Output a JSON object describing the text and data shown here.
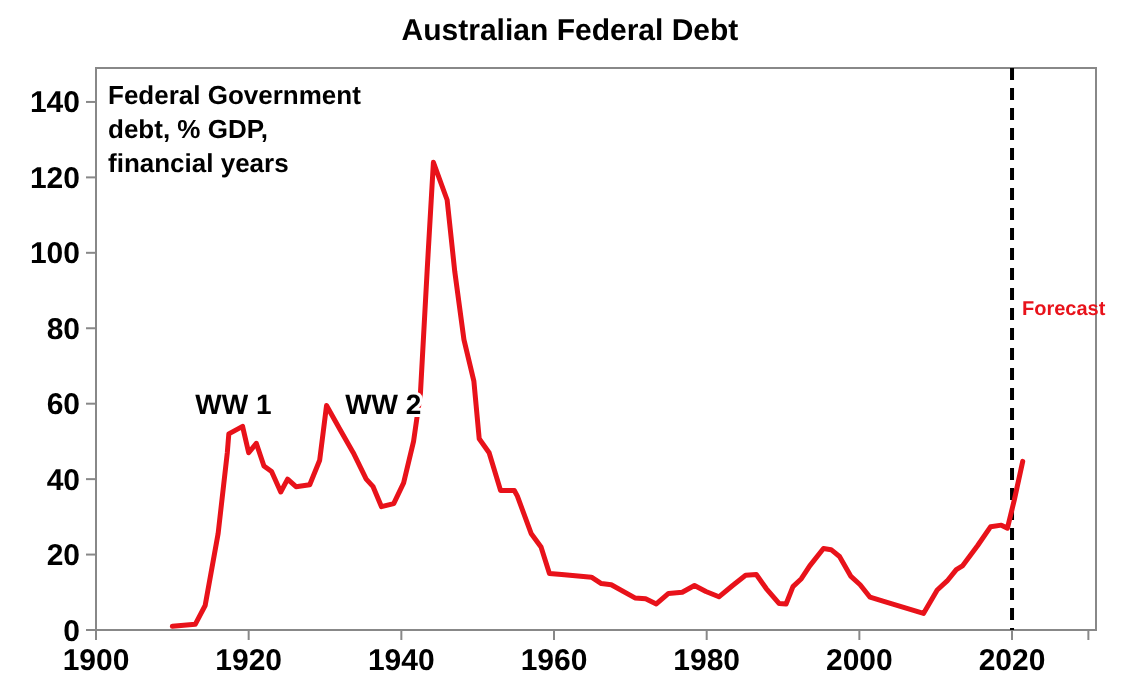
{
  "chart_data": {
    "type": "line",
    "title": "Australian Federal Debt",
    "ylabel": "Federal Government debt, % GDP, financial years",
    "xlim": [
      1900,
      2031
    ],
    "xticks": [
      1900,
      1920,
      1940,
      1960,
      1980,
      2000,
      2020,
      {
        "value": 2030,
        "label": null
      }
    ],
    "ylim": [
      0,
      149
    ],
    "yticks": [
      0,
      20,
      40,
      60,
      80,
      100,
      120,
      140
    ],
    "line_style": "solid",
    "marker": "none",
    "series": [
      {
        "color": "#e8121a",
        "x": [
          1910,
          1913,
          1914.3,
          1916,
          1917.2,
          1917.4,
          1919.2,
          1920,
          1921,
          1922,
          1923,
          1924.2,
          1925.1,
          1926.2,
          1928,
          1929.3,
          1930.2,
          1932,
          1933.7,
          1935.4,
          1936.3,
          1937.4,
          1939,
          1940.3,
          1941.6,
          1942.5,
          1943.4,
          1944.2,
          1946,
          1947,
          1948.2,
          1949.5,
          1950.2,
          1951.5,
          1953,
          1954.8,
          1955.2,
          1957,
          1958.3,
          1959.4,
          1961,
          1964.9,
          1966.2,
          1967.5,
          1970.6,
          1972,
          1973.4,
          1975,
          1976.8,
          1978.4,
          1979.9,
          1981.6,
          1983.4,
          1985.1,
          1986.5,
          1987.8,
          1989.5,
          1990.4,
          1991.3,
          1992.4,
          1993.5,
          1995.3,
          1996.3,
          1997.4,
          1998.9,
          2000.1,
          2001.4,
          2003.2,
          2008.4,
          2010.2,
          2011.5,
          2012.7,
          2013.5,
          2015.5,
          2017.2,
          2018.6,
          2019.4,
          2020.3,
          2021.4
        ],
        "values": [
          1,
          1.5,
          6.5,
          25.6,
          47,
          52,
          54,
          47,
          49.5,
          43.5,
          42,
          36.6,
          40,
          38,
          38.5,
          45,
          59.5,
          53,
          47,
          40,
          38,
          32.7,
          33.5,
          39,
          50,
          62.7,
          96,
          124,
          114,
          95,
          77,
          66,
          50.7,
          47,
          37,
          37,
          35.5,
          25.6,
          22,
          15,
          14.7,
          14,
          12.3,
          12,
          8.5,
          8.3,
          6.9,
          9.7,
          10,
          11.8,
          10.2,
          8.8,
          11.8,
          14.5,
          14.7,
          11,
          7,
          6.9,
          11.5,
          13.6,
          17,
          21.6,
          21.3,
          19.5,
          14.2,
          12,
          8.7,
          7.6,
          4.4,
          10.6,
          13,
          16,
          17,
          22.4,
          27.4,
          27.8,
          27,
          34.5,
          44.7
        ]
      }
    ],
    "ref_lines": [
      {
        "axis": "x",
        "value": 2020,
        "label": "Forecast",
        "color": "#000000",
        "line_style": "dashed"
      }
    ],
    "annotations": [
      {
        "text": "WW 1",
        "x": 1918,
        "y": 54
      },
      "WW 2"
    ]
  }
}
